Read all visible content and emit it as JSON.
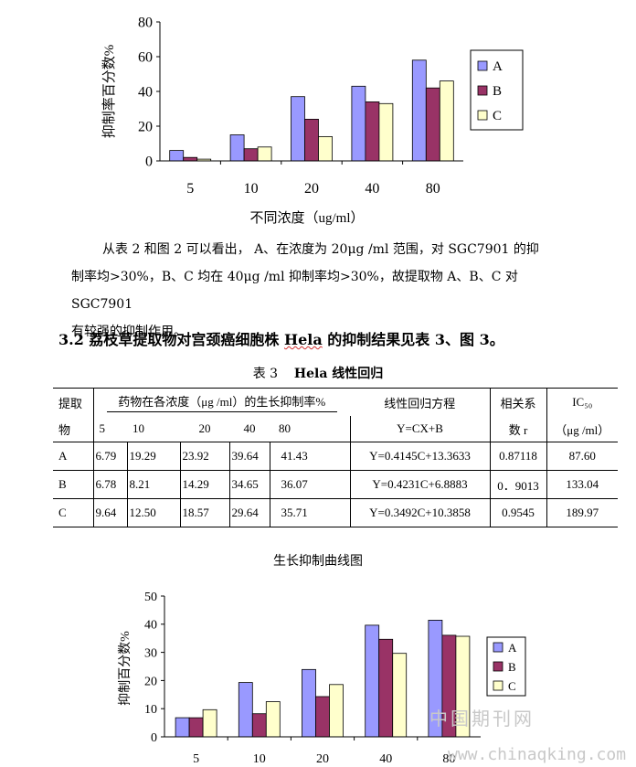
{
  "chart_data": [
    {
      "type": "bar",
      "categories": [
        "5",
        "10",
        "20",
        "40",
        "80"
      ],
      "series": [
        {
          "name": "A",
          "values": [
            6,
            15,
            37,
            43,
            58
          ],
          "color": "#9999ff"
        },
        {
          "name": "B",
          "values": [
            2,
            7,
            24,
            34,
            42
          ],
          "color": "#993366"
        },
        {
          "name": "C",
          "values": [
            1,
            8,
            14,
            33,
            46
          ],
          "color": "#ffffcc"
        }
      ],
      "xlabel": "不同浓度（ug/ml）",
      "ylabel": "抑制率百分数%",
      "yticks": [
        "0",
        "20",
        "40",
        "60",
        "80"
      ],
      "ylim": [
        0,
        80
      ],
      "legend_position": "right"
    },
    {
      "type": "bar",
      "title": "生长抑制曲线图",
      "categories": [
        "5",
        "10",
        "20",
        "40",
        "80"
      ],
      "series": [
        {
          "name": "A",
          "values": [
            6.79,
            19.29,
            23.92,
            39.64,
            41.43
          ],
          "color": "#9999ff"
        },
        {
          "name": "B",
          "values": [
            6.78,
            8.21,
            14.29,
            34.65,
            36.07
          ],
          "color": "#993366"
        },
        {
          "name": "C",
          "values": [
            9.64,
            12.5,
            18.57,
            29.64,
            35.71
          ],
          "color": "#ffffcc"
        }
      ],
      "xlabel": "",
      "ylabel": "抑制百分数%",
      "yticks": [
        "0",
        "10",
        "20",
        "30",
        "40",
        "50"
      ],
      "ylim": [
        0,
        50
      ],
      "legend_position": "right"
    }
  ],
  "paragraph": {
    "line1": "从表 2 和图 2 可以看出， A、在浓度为  20μg /ml 范围，对 SGC7901 的抑",
    "line2": "制率均>30%，B、C 均在 40μg /ml 抑制率均>30%，故提取物 A、B、C 对  SGC7901",
    "line3": "有较强的抑制作用。"
  },
  "section": {
    "pre": "3.2 荔枝草提取物对宫颈癌细胞株 ",
    "hela": "Hela",
    "post": " 的抑制结果见表 3、图 3。"
  },
  "table_caption": {
    "num": "表 3",
    "title": "Hela 线性回归"
  },
  "table": {
    "h_extract_1": "提取",
    "h_extract_2": "物",
    "h_rate": "药物在各浓度（μg /ml）的生长抑制率%",
    "concs": [
      "5",
      "10",
      "20",
      "40",
      "80"
    ],
    "h_eq_1": "线性回归方程",
    "h_eq_2": "Y=CX+B",
    "h_r_1": "相关系",
    "h_r_2": "数 r",
    "h_ic_1": "IC₅₀",
    "h_ic_2": "（μg /ml）",
    "rows": [
      {
        "name": "A",
        "v": [
          "6.79",
          "19.29",
          "23.92",
          "39.64",
          "41.43"
        ],
        "eq": "Y=0.4145C+13.3633",
        "r": "0.87118",
        "ic": "87.60"
      },
      {
        "name": "B",
        "v": [
          "6.78",
          "8.21",
          "14.29",
          "34.65",
          "36.07"
        ],
        "eq": "Y=0.4231C+6.8883",
        "r": "0．9013",
        "ic": "133.04"
      },
      {
        "name": "C",
        "v": [
          "9.64",
          "12.50",
          "18.57",
          "29.64",
          "35.71"
        ],
        "eq": "Y=0.3492C+10.3858",
        "r": "0.9545",
        "ic": "189.97"
      }
    ]
  },
  "watermark": {
    "cn": "中国期刊网",
    "url": "www.chinaqking.com"
  }
}
